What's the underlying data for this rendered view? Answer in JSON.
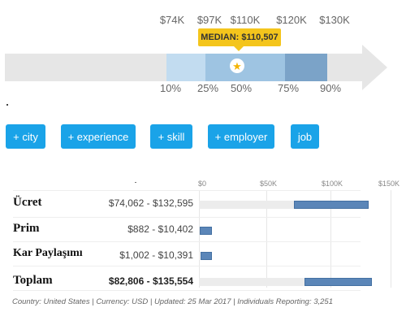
{
  "distribution": {
    "top_ticks": [
      "$74K",
      "$97K",
      "$110K",
      "$120K",
      "$130K"
    ],
    "percentile_ticks": [
      "10%",
      "25%",
      "50%",
      "75%",
      "90%"
    ],
    "median_label": "MEDIAN: $110,507",
    "colors": {
      "arrow": "#e6e6e6",
      "p10_25": "#c2dcf0",
      "p25_75": "#9ec4e2",
      "p75_90": "#7ba3c8",
      "median_badge": "#f4c51c"
    }
  },
  "filters": [
    {
      "label": "+ city"
    },
    {
      "label": "+ experience"
    },
    {
      "label": "+ skill"
    },
    {
      "label": "+ employer"
    },
    {
      "label": "job"
    }
  ],
  "compensation": {
    "axis_ticks": [
      "$0",
      "$50K",
      "$100K",
      "$150K"
    ],
    "axis_max": 150000,
    "rows": [
      {
        "label": "Ücret",
        "range": "$74,062 - $132,595",
        "min": 74062,
        "max": 132595,
        "bold": false
      },
      {
        "label": "Prim",
        "range": "$882 - $10,402",
        "min": 882,
        "max": 10402,
        "bold": false
      },
      {
        "label": "Kar Paylaşımı",
        "range": "$1,002 - $10,391",
        "min": 1002,
        "max": 10391,
        "bold": false
      },
      {
        "label": "Toplam",
        "range": "$82,806 - $135,554",
        "min": 82806,
        "max": 135554,
        "bold": true
      }
    ]
  },
  "footer": "Country: United States | Currency: USD | Updated: 25 Mar 2017 | Individuals Reporting: 3,251"
}
